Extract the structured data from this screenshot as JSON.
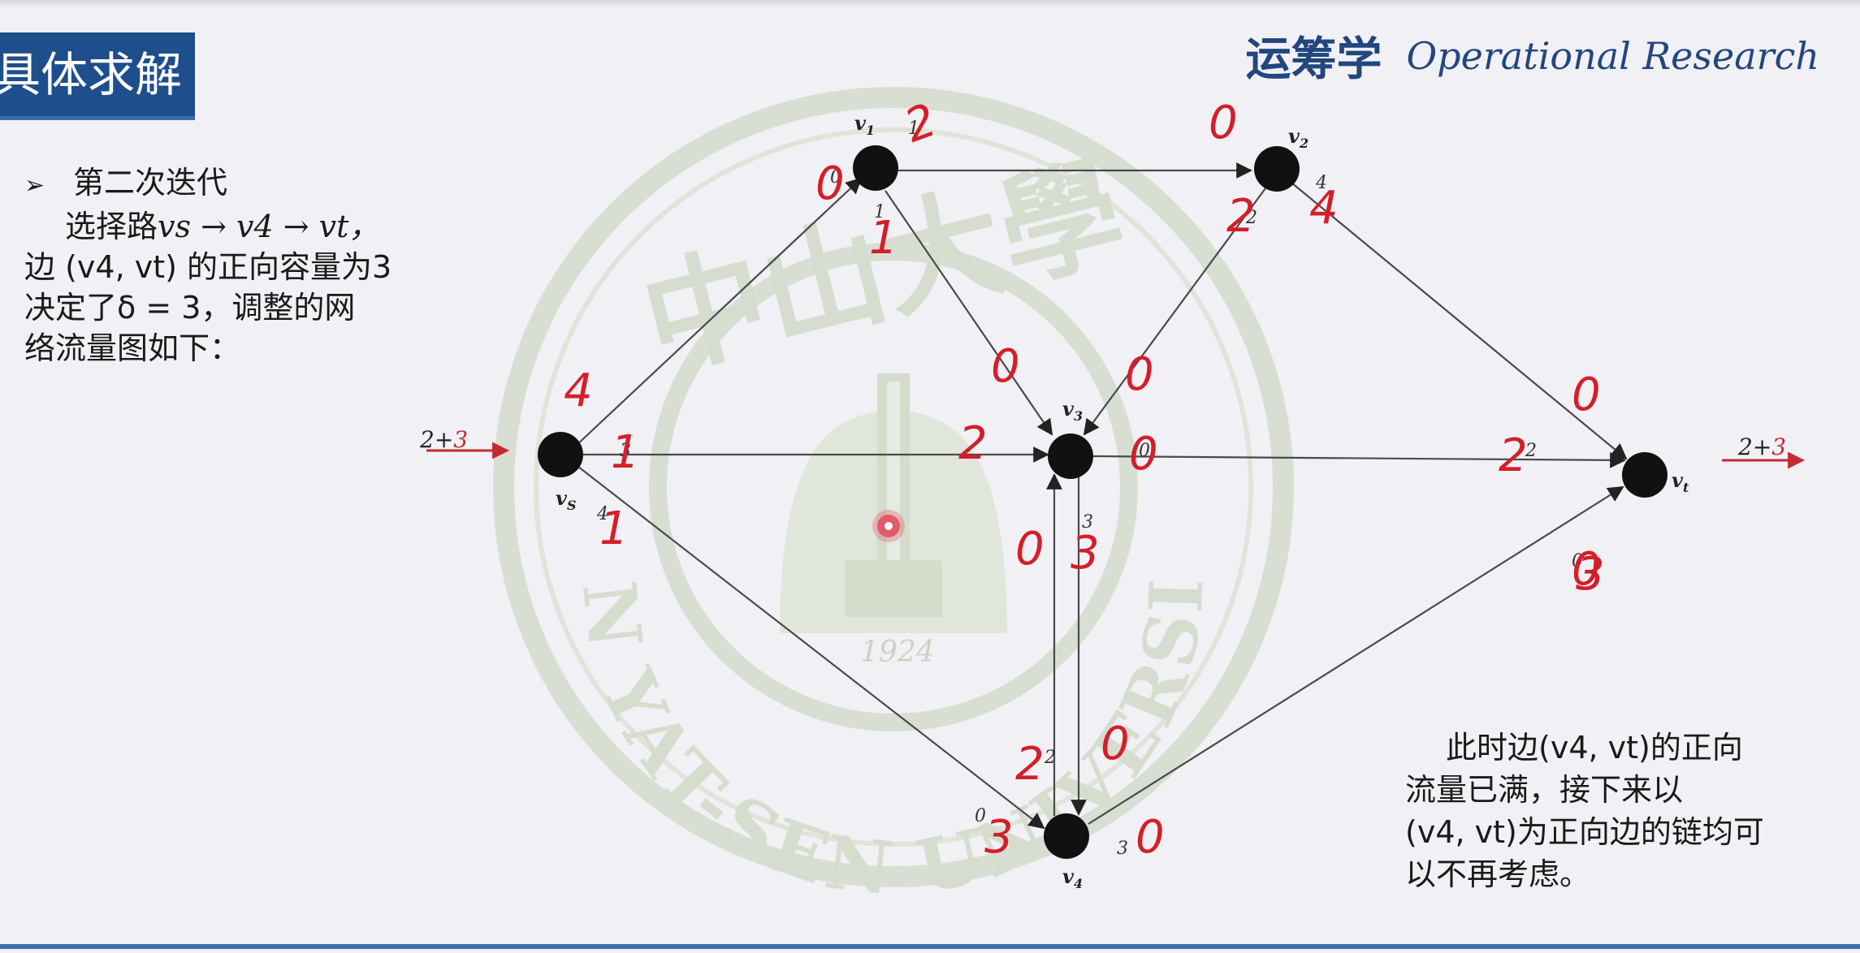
{
  "header": {
    "title": "具体求解",
    "brand_cn": "运筹学",
    "brand_en": "Operational Research"
  },
  "left_panel": {
    "bullet_icon": "arrow-bullet-icon",
    "heading": "第二次迭代",
    "line1_prefix": "选择路",
    "line1_path": "vs → v4 → vt，",
    "line2": "边 (v4, vt) 的正向容量为3",
    "line3": "决定了δ = 3，调整的网",
    "line4": "络流量图如下："
  },
  "note": {
    "line1": "此时边(v4, vt)的正向",
    "line2": "流量已满，接下来以",
    "line3": "(v4, vt)为正向边的链均可",
    "line4": "以不再考虑。"
  },
  "watermark": {
    "top_text": "中山大學",
    "ring_text": "SUN YAT-SEN UNIVERSITY",
    "year": "1924"
  },
  "graph": {
    "source_flow_black": "2+",
    "source_flow_red": "3",
    "sink_flow_black": "2+",
    "sink_flow_red": "3",
    "nodes": [
      {
        "id": "vs",
        "label": "v",
        "sub": "S"
      },
      {
        "id": "v1",
        "label": "v",
        "sub": "1"
      },
      {
        "id": "v2",
        "label": "v",
        "sub": "2"
      },
      {
        "id": "v3",
        "label": "v",
        "sub": "3"
      },
      {
        "id": "v4",
        "label": "v",
        "sub": "4"
      },
      {
        "id": "vt",
        "label": "v",
        "sub": "t"
      }
    ],
    "edge_labels_printed": [
      "0",
      "1",
      "1",
      "4",
      "2",
      "2",
      "3",
      "0",
      "4",
      "0",
      "3",
      "2",
      "0",
      "3"
    ],
    "edge_labels_handwritten": [
      "2",
      "0",
      "1",
      "0",
      "4",
      "2",
      "4",
      "1",
      "1",
      "0",
      "0",
      "2",
      "0",
      "0",
      "0",
      "3",
      "0",
      "2",
      "0",
      "3",
      "0",
      "3",
      "2"
    ],
    "colors": {
      "node": "#111111",
      "edge": "#4a4a4a",
      "handwritten": "#d41e2a",
      "watermark": "#c9d3bf"
    }
  }
}
